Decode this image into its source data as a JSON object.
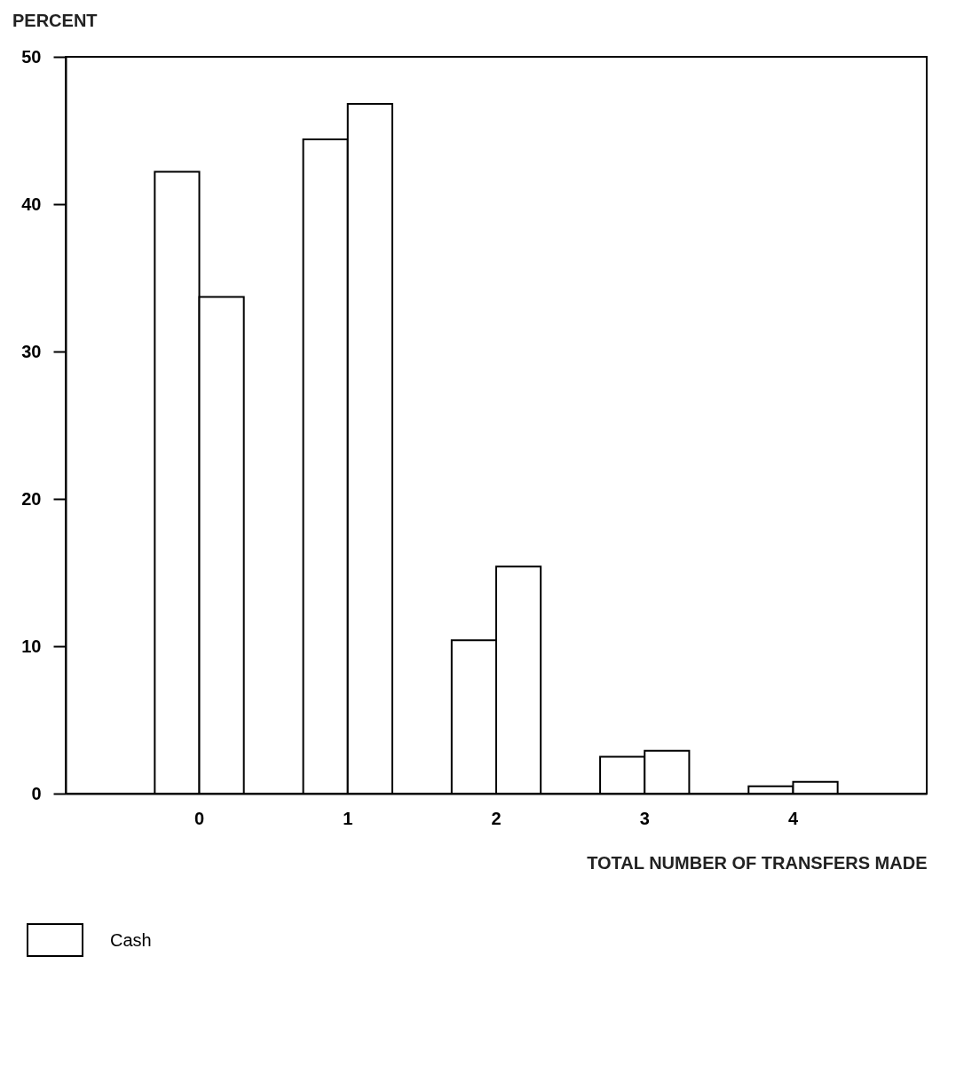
{
  "chart_data": {
    "type": "bar",
    "ylabel": "PERCENT",
    "xlabel": "TOTAL NUMBER OF TRANSFERS MADE",
    "categories": [
      "0",
      "1",
      "2",
      "3",
      "4"
    ],
    "series": [
      {
        "name": "Cash",
        "color": "#ffffff",
        "values": [
          42.2,
          44.4,
          10.4,
          2.5,
          0.5
        ]
      },
      {
        "color": "#ffffff",
        "values": [
          33.7,
          46.8,
          15.4,
          2.9,
          0.8
        ]
      }
    ],
    "ylim": [
      0,
      50
    ],
    "yticks": [
      0,
      10,
      20,
      30,
      40,
      50
    ],
    "grid": false,
    "legend": "bottom left"
  }
}
